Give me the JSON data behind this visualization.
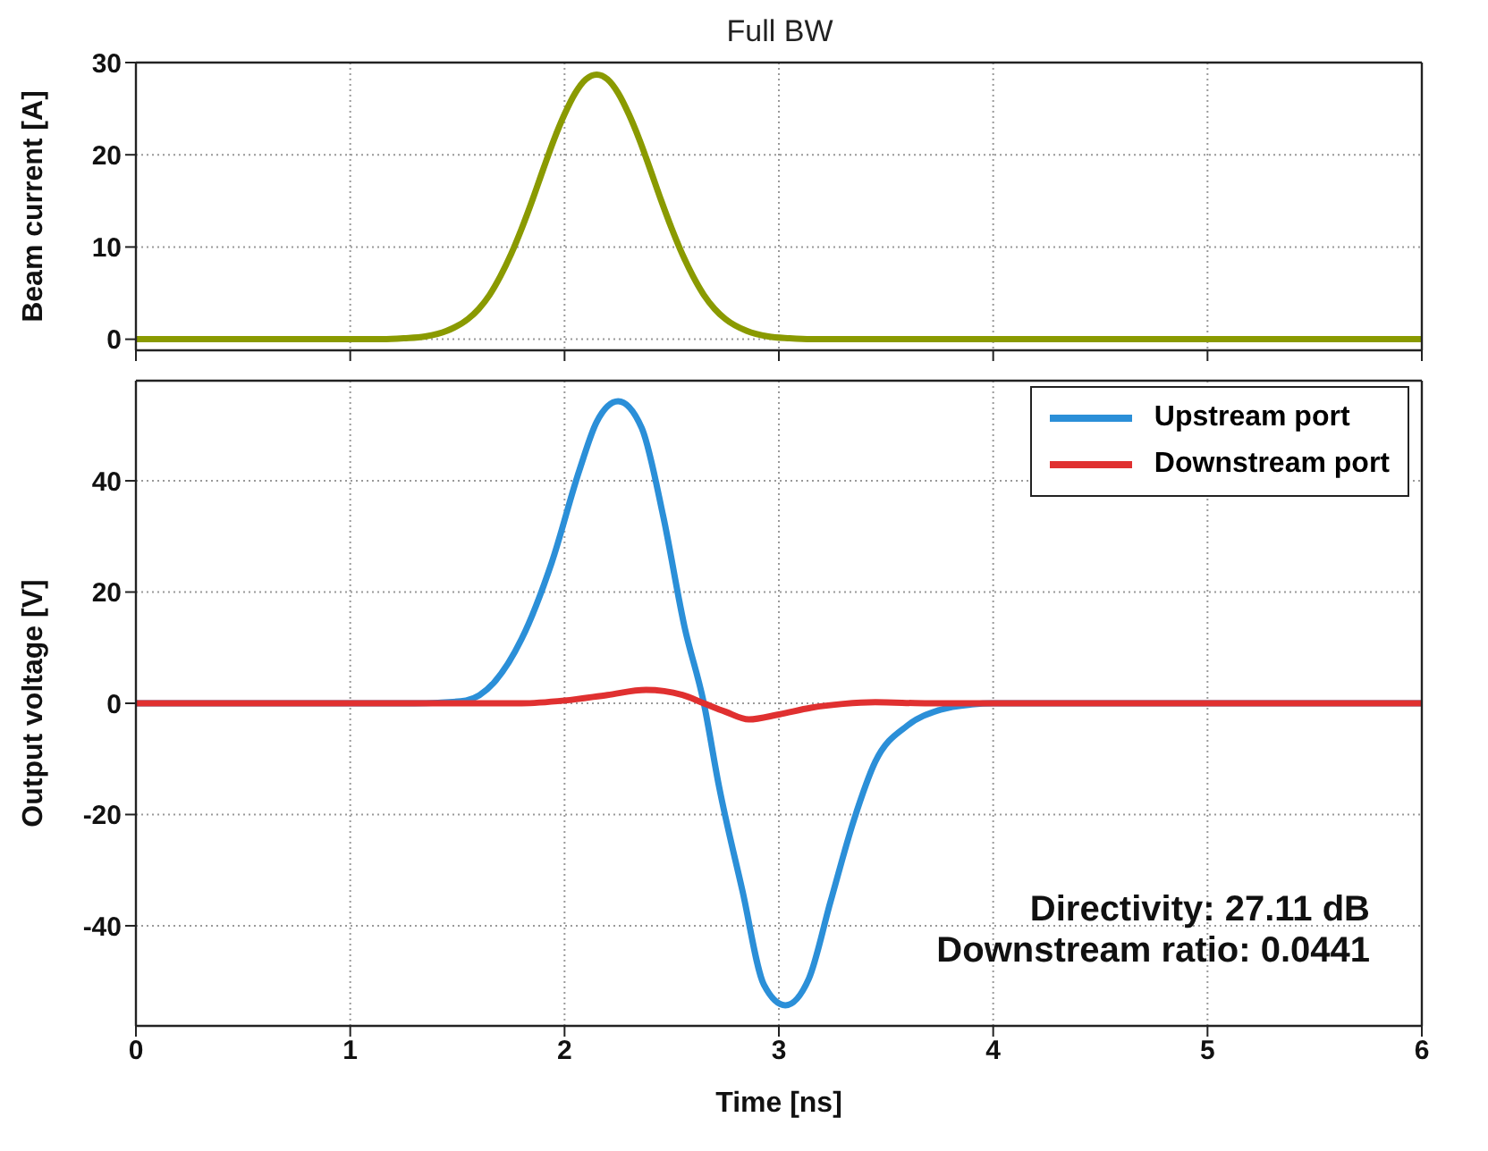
{
  "chart_data": [
    {
      "type": "line",
      "title": "Full BW",
      "ylabel": "Beam current [A]",
      "xlim": [
        0,
        6
      ],
      "xticks": [
        0,
        1,
        2,
        3,
        4,
        5,
        6
      ],
      "ylim": [
        -1.2,
        30
      ],
      "yticks": [
        0,
        10,
        20,
        30
      ],
      "grid": true,
      "legend": false,
      "tick_labels": "y",
      "line_style": "solid",
      "marker": "none",
      "series": [
        {
          "color": "#8a9a00",
          "x": [
            0,
            1.15,
            1.25,
            1.35,
            1.45,
            1.55,
            1.6,
            1.65,
            1.7,
            1.75,
            1.8,
            1.85,
            1.9,
            1.95,
            2.0,
            2.05,
            2.1,
            2.15,
            2.2,
            2.25,
            2.3,
            2.35,
            2.4,
            2.45,
            2.5,
            2.55,
            2.6,
            2.65,
            2.7,
            2.75,
            2.85,
            2.95,
            3.05,
            3.15,
            6
          ],
          "values": [
            0,
            0,
            0.1,
            0.3,
            0.9,
            2.2,
            3.3,
            4.8,
            6.8,
            9.2,
            12.0,
            15.1,
            18.4,
            21.6,
            24.4,
            26.7,
            28.2,
            28.7,
            28.2,
            26.7,
            24.4,
            21.6,
            18.4,
            15.1,
            12.0,
            9.2,
            6.8,
            4.8,
            3.3,
            2.2,
            0.9,
            0.3,
            0.1,
            0,
            0
          ]
        }
      ]
    },
    {
      "type": "line",
      "xlabel": "Time [ns]",
      "ylabel": "Output voltage [V]",
      "xlim": [
        0,
        6
      ],
      "xticks": [
        0,
        1,
        2,
        3,
        4,
        5,
        6
      ],
      "ylim": [
        -58,
        58
      ],
      "yticks": [
        -40,
        -20,
        0,
        20,
        40
      ],
      "grid": true,
      "legend": "top right",
      "line_style": "solid",
      "marker": "none",
      "annotations": [
        "Directivity: 27.11 dB",
        "Downstream ratio: 0.0441"
      ],
      "series": [
        {
          "name": "Upstream port",
          "color": "#2b8fd8",
          "x": [
            0,
            1.3,
            1.41,
            1.54,
            1.67,
            1.8,
            1.94,
            2.07,
            2.15,
            2.25,
            2.36,
            2.46,
            2.56,
            2.65,
            2.72,
            2.83,
            2.93,
            3.03,
            3.14,
            3.24,
            3.35,
            3.45,
            3.6,
            3.75,
            3.9,
            4.0,
            6
          ],
          "values": [
            0,
            0,
            0.1,
            0.5,
            3.7,
            11.6,
            25.3,
            42,
            50.6,
            54.3,
            49.5,
            33.7,
            13.7,
            0,
            -14.8,
            -33.7,
            -50.6,
            -54.3,
            -49.5,
            -35.8,
            -21,
            -10.5,
            -4,
            -1.2,
            -0.2,
            0,
            0
          ]
        },
        {
          "name": "Downstream port",
          "color": "#e03030",
          "x": [
            0,
            1.8,
            2.0,
            2.2,
            2.38,
            2.55,
            2.65,
            2.75,
            2.86,
            3.0,
            3.15,
            3.3,
            3.45,
            3.7,
            6
          ],
          "values": [
            0,
            0,
            0.5,
            1.5,
            2.4,
            1.5,
            0,
            -1.5,
            -2.9,
            -2.0,
            -0.8,
            -0.1,
            0.2,
            0,
            0
          ]
        }
      ]
    }
  ]
}
